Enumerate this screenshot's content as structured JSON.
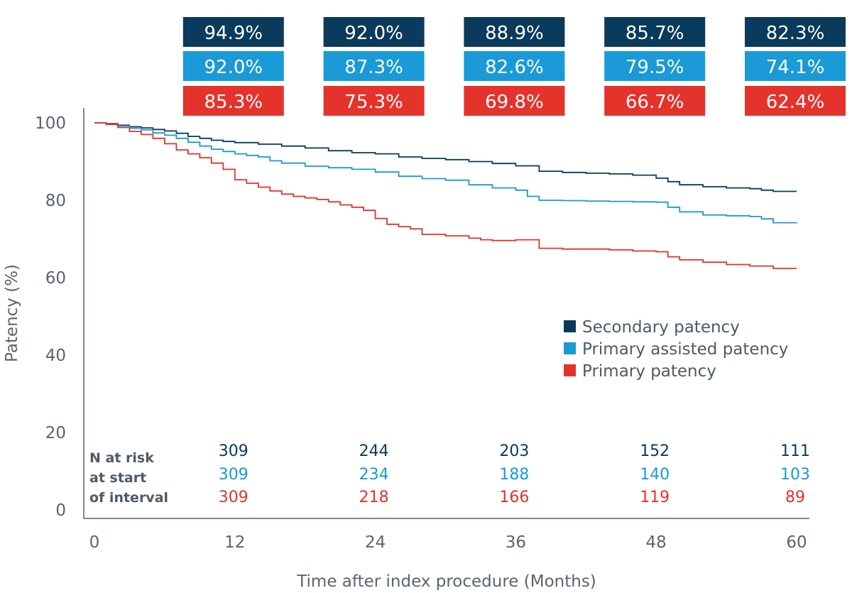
{
  "colors": {
    "secondary": "#0a3a5c",
    "primary_assisted": "#1a9ad6",
    "primary": "#e4332b",
    "axis": "#5a6470"
  },
  "chart_data": {
    "type": "line",
    "title": "",
    "xlabel": "Time after index procedure (Months)",
    "ylabel": "Patency (%)",
    "xlim": [
      0,
      60
    ],
    "ylim": [
      0,
      100
    ],
    "x_ticks": [
      0,
      12,
      24,
      36,
      48,
      60
    ],
    "y_ticks": [
      0,
      20,
      40,
      60,
      80,
      100
    ],
    "grid": false,
    "legend_position": "right",
    "series": [
      {
        "name": "Secondary patency",
        "color_key": "secondary",
        "x": [
          0,
          1,
          2,
          3,
          4,
          5,
          6,
          7,
          8,
          9,
          10,
          11,
          12,
          14,
          16,
          18,
          20,
          22,
          24,
          26,
          28,
          30,
          32,
          34,
          36,
          38,
          40,
          42,
          44,
          46,
          48,
          49,
          50,
          52,
          54,
          56,
          57,
          58,
          60
        ],
        "y": [
          100,
          99.8,
          99.4,
          99,
          98.7,
          98.3,
          97.9,
          97.3,
          96.5,
          96,
          95.5,
          95.2,
          94.9,
          94.5,
          94,
          93.5,
          92.8,
          92.3,
          92.0,
          91.2,
          90.8,
          90.5,
          90,
          89.5,
          88.9,
          87.5,
          87.2,
          87,
          86.8,
          86.5,
          85.7,
          84.8,
          84,
          83.5,
          83.2,
          83.0,
          82.6,
          82.3,
          82.3
        ]
      },
      {
        "name": "Primary assisted patency",
        "color_key": "primary_assisted",
        "x": [
          0,
          1,
          2,
          3,
          4,
          5,
          6,
          7,
          8,
          9,
          10,
          11,
          12,
          13,
          14,
          15,
          16,
          18,
          20,
          22,
          24,
          26,
          28,
          30,
          32,
          34,
          36,
          37,
          38,
          40,
          42,
          44,
          46,
          48,
          49,
          50,
          52,
          54,
          56,
          57,
          58,
          60
        ],
        "y": [
          100,
          99.6,
          99.2,
          98.6,
          98.2,
          97.4,
          96.8,
          96,
          95,
          94,
          93.2,
          92.6,
          92.0,
          91.6,
          91.2,
          90.2,
          89.6,
          88.8,
          88.4,
          88,
          87.3,
          86.2,
          85.6,
          85.2,
          84,
          83.2,
          82.6,
          81,
          80,
          79.9,
          79.8,
          79.7,
          79.6,
          79.5,
          78.2,
          77,
          76.2,
          76,
          75.8,
          75.2,
          74.2,
          74.1
        ]
      },
      {
        "name": "Primary patency",
        "color_key": "primary",
        "x": [
          0,
          1,
          2,
          3,
          4,
          5,
          6,
          7,
          8,
          9,
          10,
          11,
          12,
          13,
          14,
          15,
          16,
          17,
          18,
          19,
          20,
          21,
          22,
          23,
          24,
          25,
          26,
          27,
          28,
          30,
          32,
          33,
          34,
          36,
          38,
          40,
          44,
          46,
          48,
          49,
          50,
          52,
          54,
          56,
          58,
          60
        ],
        "y": [
          100,
          99.6,
          98.8,
          97.8,
          97,
          96,
          94.6,
          93,
          92,
          91,
          89.6,
          88,
          85.3,
          84.4,
          83.4,
          82.4,
          81.6,
          81,
          80.6,
          80.2,
          79.6,
          78.8,
          78.2,
          77.4,
          75.3,
          73.8,
          73.2,
          72.6,
          71.2,
          70.8,
          70.2,
          69.8,
          69.6,
          69.8,
          67.6,
          67.4,
          67.2,
          66.9,
          66.7,
          65.4,
          64.6,
          64,
          63.4,
          63,
          62.4,
          62.4
        ]
      }
    ],
    "boxes": [
      {
        "x": 12,
        "values": [
          "94.9%",
          "92.0%",
          "85.3%"
        ]
      },
      {
        "x": 24,
        "values": [
          "92.0%",
          "87.3%",
          "75.3%"
        ]
      },
      {
        "x": 36,
        "values": [
          "88.9%",
          "82.6%",
          "69.8%"
        ]
      },
      {
        "x": 48,
        "values": [
          "85.7%",
          "79.5%",
          "66.7%"
        ]
      },
      {
        "x": 60,
        "values": [
          "82.3%",
          "74.1%",
          "62.4%"
        ]
      }
    ],
    "risk_table": {
      "label_lines": [
        "N at risk",
        "at start",
        "of interval"
      ],
      "x": [
        12,
        24,
        36,
        48,
        60
      ],
      "rows": [
        {
          "color_key": "secondary",
          "values": [
            "309",
            "244",
            "203",
            "152",
            "111"
          ]
        },
        {
          "color_key": "primary_assisted",
          "values": [
            "309",
            "234",
            "188",
            "140",
            "103"
          ]
        },
        {
          "color_key": "primary",
          "values": [
            "309",
            "218",
            "166",
            "119",
            "89"
          ]
        }
      ]
    }
  }
}
